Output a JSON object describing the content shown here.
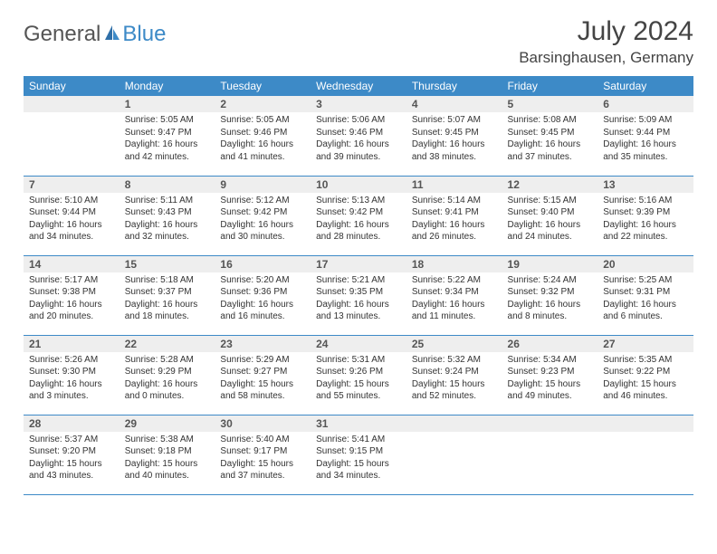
{
  "logo": {
    "part1": "General",
    "part2": "Blue"
  },
  "title": "July 2024",
  "location": "Barsinghausen, Germany",
  "header_bg": "#3d8ac7",
  "header_fg": "#ffffff",
  "daynum_bg": "#eeeeee",
  "border_color": "#3d8ac7",
  "font_family": "Arial, Helvetica, sans-serif",
  "daynames": [
    "Sunday",
    "Monday",
    "Tuesday",
    "Wednesday",
    "Thursday",
    "Friday",
    "Saturday"
  ],
  "weeks": [
    [
      null,
      {
        "n": "1",
        "sr": "Sunrise: 5:05 AM",
        "ss": "Sunset: 9:47 PM",
        "dl1": "Daylight: 16 hours",
        "dl2": "and 42 minutes."
      },
      {
        "n": "2",
        "sr": "Sunrise: 5:05 AM",
        "ss": "Sunset: 9:46 PM",
        "dl1": "Daylight: 16 hours",
        "dl2": "and 41 minutes."
      },
      {
        "n": "3",
        "sr": "Sunrise: 5:06 AM",
        "ss": "Sunset: 9:46 PM",
        "dl1": "Daylight: 16 hours",
        "dl2": "and 39 minutes."
      },
      {
        "n": "4",
        "sr": "Sunrise: 5:07 AM",
        "ss": "Sunset: 9:45 PM",
        "dl1": "Daylight: 16 hours",
        "dl2": "and 38 minutes."
      },
      {
        "n": "5",
        "sr": "Sunrise: 5:08 AM",
        "ss": "Sunset: 9:45 PM",
        "dl1": "Daylight: 16 hours",
        "dl2": "and 37 minutes."
      },
      {
        "n": "6",
        "sr": "Sunrise: 5:09 AM",
        "ss": "Sunset: 9:44 PM",
        "dl1": "Daylight: 16 hours",
        "dl2": "and 35 minutes."
      }
    ],
    [
      {
        "n": "7",
        "sr": "Sunrise: 5:10 AM",
        "ss": "Sunset: 9:44 PM",
        "dl1": "Daylight: 16 hours",
        "dl2": "and 34 minutes."
      },
      {
        "n": "8",
        "sr": "Sunrise: 5:11 AM",
        "ss": "Sunset: 9:43 PM",
        "dl1": "Daylight: 16 hours",
        "dl2": "and 32 minutes."
      },
      {
        "n": "9",
        "sr": "Sunrise: 5:12 AM",
        "ss": "Sunset: 9:42 PM",
        "dl1": "Daylight: 16 hours",
        "dl2": "and 30 minutes."
      },
      {
        "n": "10",
        "sr": "Sunrise: 5:13 AM",
        "ss": "Sunset: 9:42 PM",
        "dl1": "Daylight: 16 hours",
        "dl2": "and 28 minutes."
      },
      {
        "n": "11",
        "sr": "Sunrise: 5:14 AM",
        "ss": "Sunset: 9:41 PM",
        "dl1": "Daylight: 16 hours",
        "dl2": "and 26 minutes."
      },
      {
        "n": "12",
        "sr": "Sunrise: 5:15 AM",
        "ss": "Sunset: 9:40 PM",
        "dl1": "Daylight: 16 hours",
        "dl2": "and 24 minutes."
      },
      {
        "n": "13",
        "sr": "Sunrise: 5:16 AM",
        "ss": "Sunset: 9:39 PM",
        "dl1": "Daylight: 16 hours",
        "dl2": "and 22 minutes."
      }
    ],
    [
      {
        "n": "14",
        "sr": "Sunrise: 5:17 AM",
        "ss": "Sunset: 9:38 PM",
        "dl1": "Daylight: 16 hours",
        "dl2": "and 20 minutes."
      },
      {
        "n": "15",
        "sr": "Sunrise: 5:18 AM",
        "ss": "Sunset: 9:37 PM",
        "dl1": "Daylight: 16 hours",
        "dl2": "and 18 minutes."
      },
      {
        "n": "16",
        "sr": "Sunrise: 5:20 AM",
        "ss": "Sunset: 9:36 PM",
        "dl1": "Daylight: 16 hours",
        "dl2": "and 16 minutes."
      },
      {
        "n": "17",
        "sr": "Sunrise: 5:21 AM",
        "ss": "Sunset: 9:35 PM",
        "dl1": "Daylight: 16 hours",
        "dl2": "and 13 minutes."
      },
      {
        "n": "18",
        "sr": "Sunrise: 5:22 AM",
        "ss": "Sunset: 9:34 PM",
        "dl1": "Daylight: 16 hours",
        "dl2": "and 11 minutes."
      },
      {
        "n": "19",
        "sr": "Sunrise: 5:24 AM",
        "ss": "Sunset: 9:32 PM",
        "dl1": "Daylight: 16 hours",
        "dl2": "and 8 minutes."
      },
      {
        "n": "20",
        "sr": "Sunrise: 5:25 AM",
        "ss": "Sunset: 9:31 PM",
        "dl1": "Daylight: 16 hours",
        "dl2": "and 6 minutes."
      }
    ],
    [
      {
        "n": "21",
        "sr": "Sunrise: 5:26 AM",
        "ss": "Sunset: 9:30 PM",
        "dl1": "Daylight: 16 hours",
        "dl2": "and 3 minutes."
      },
      {
        "n": "22",
        "sr": "Sunrise: 5:28 AM",
        "ss": "Sunset: 9:29 PM",
        "dl1": "Daylight: 16 hours",
        "dl2": "and 0 minutes."
      },
      {
        "n": "23",
        "sr": "Sunrise: 5:29 AM",
        "ss": "Sunset: 9:27 PM",
        "dl1": "Daylight: 15 hours",
        "dl2": "and 58 minutes."
      },
      {
        "n": "24",
        "sr": "Sunrise: 5:31 AM",
        "ss": "Sunset: 9:26 PM",
        "dl1": "Daylight: 15 hours",
        "dl2": "and 55 minutes."
      },
      {
        "n": "25",
        "sr": "Sunrise: 5:32 AM",
        "ss": "Sunset: 9:24 PM",
        "dl1": "Daylight: 15 hours",
        "dl2": "and 52 minutes."
      },
      {
        "n": "26",
        "sr": "Sunrise: 5:34 AM",
        "ss": "Sunset: 9:23 PM",
        "dl1": "Daylight: 15 hours",
        "dl2": "and 49 minutes."
      },
      {
        "n": "27",
        "sr": "Sunrise: 5:35 AM",
        "ss": "Sunset: 9:22 PM",
        "dl1": "Daylight: 15 hours",
        "dl2": "and 46 minutes."
      }
    ],
    [
      {
        "n": "28",
        "sr": "Sunrise: 5:37 AM",
        "ss": "Sunset: 9:20 PM",
        "dl1": "Daylight: 15 hours",
        "dl2": "and 43 minutes."
      },
      {
        "n": "29",
        "sr": "Sunrise: 5:38 AM",
        "ss": "Sunset: 9:18 PM",
        "dl1": "Daylight: 15 hours",
        "dl2": "and 40 minutes."
      },
      {
        "n": "30",
        "sr": "Sunrise: 5:40 AM",
        "ss": "Sunset: 9:17 PM",
        "dl1": "Daylight: 15 hours",
        "dl2": "and 37 minutes."
      },
      {
        "n": "31",
        "sr": "Sunrise: 5:41 AM",
        "ss": "Sunset: 9:15 PM",
        "dl1": "Daylight: 15 hours",
        "dl2": "and 34 minutes."
      },
      null,
      null,
      null
    ]
  ]
}
